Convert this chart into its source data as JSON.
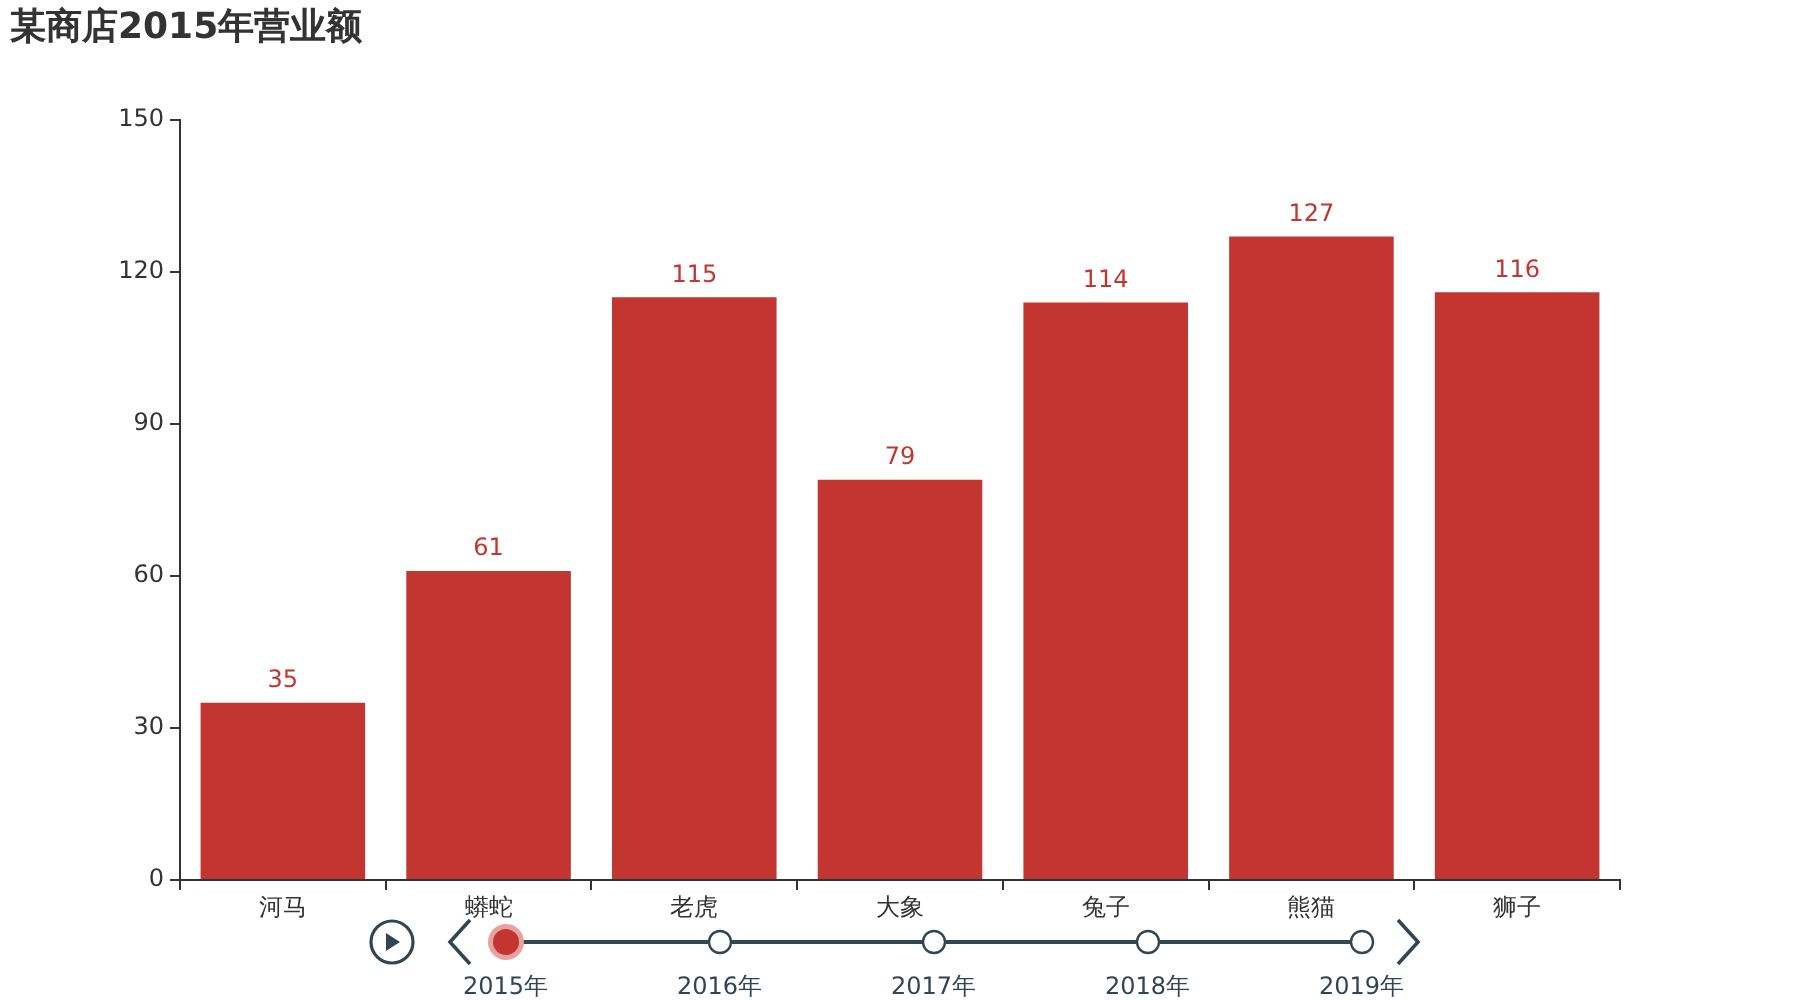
{
  "chart_data": {
    "type": "bar",
    "title": "某商店2015年营业额",
    "categories": [
      "河马",
      "蟒蛇",
      "老虎",
      "大象",
      "兔子",
      "熊猫",
      "狮子"
    ],
    "values": [
      35,
      61,
      115,
      79,
      114,
      127,
      116
    ],
    "color": "#c23531",
    "ylim": [
      0,
      150
    ],
    "yticks": [
      0,
      30,
      60,
      90,
      120,
      150
    ],
    "data_labels": true,
    "annotations": [
      "2015年",
      "2016年",
      "2017年",
      "2018年",
      "2019年"
    ]
  }
}
